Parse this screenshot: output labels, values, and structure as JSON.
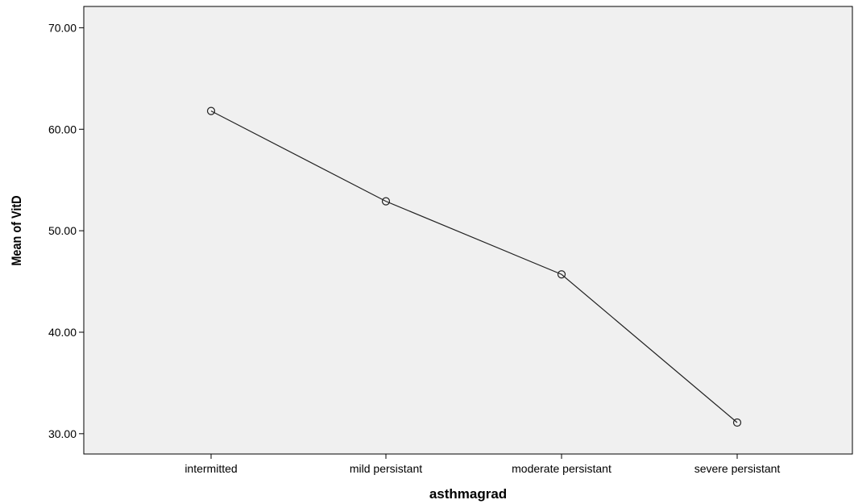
{
  "chart_data": {
    "type": "line",
    "title": "",
    "xlabel": "asthmagrad",
    "ylabel": "Mean of VitD",
    "categories": [
      "intermitted",
      "mild persistant",
      "moderate persistant",
      "severe persistant"
    ],
    "series": [
      {
        "values": [
          61.8,
          52.9,
          45.7,
          31.1
        ]
      }
    ],
    "ylim": [
      28.0,
      72.1
    ],
    "yticks": [
      30.0,
      40.0,
      50.0,
      60.0,
      70.0
    ],
    "ytick_labels": [
      "30.00",
      "40.00",
      "50.00",
      "60.00",
      "70.00"
    ],
    "markers": "open-circle",
    "grid": false,
    "legend": "none",
    "colors": {
      "plot_background": "#f0f0f0",
      "line": "#222222",
      "axis": "#000000"
    }
  }
}
